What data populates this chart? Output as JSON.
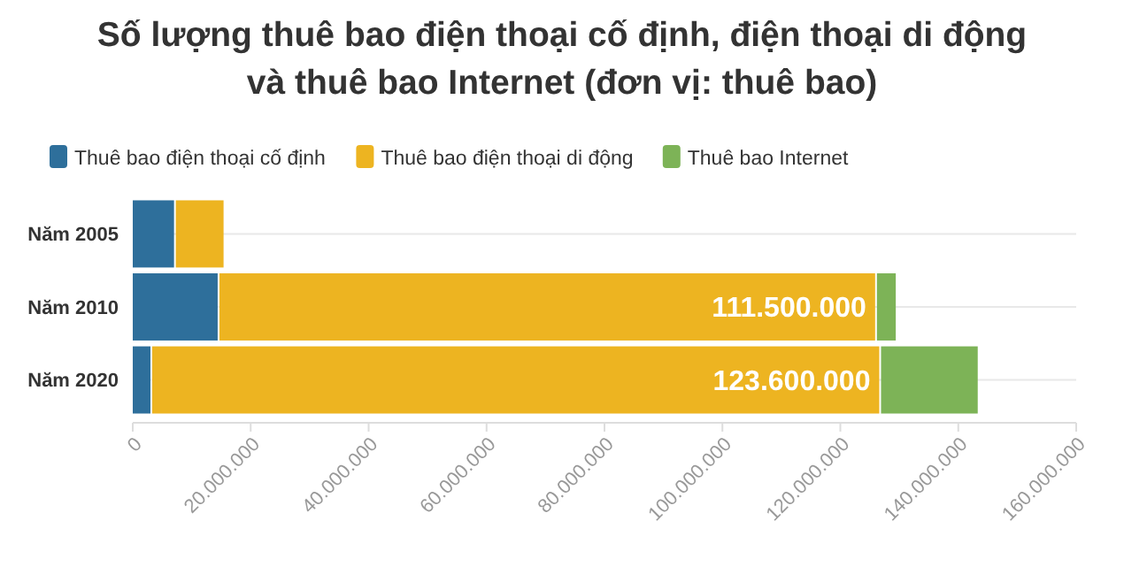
{
  "chart_data": {
    "type": "bar",
    "orientation": "horizontal",
    "stacked": true,
    "title": "Số lượng thuê bao điện thoại cố định, điện thoại di động và thuê bao Internet (đơn vị: thuê bao)",
    "categories": [
      "Năm 2005",
      "Năm 2010",
      "Năm 2020"
    ],
    "series": [
      {
        "name": "Thuê bao điện thoại cố định",
        "color": "#2e6f9b",
        "values": [
          7000000,
          14400000,
          3000000
        ]
      },
      {
        "name": "Thuê bao điện thoại di động",
        "color": "#edb421",
        "values": [
          8400000,
          111500000,
          123600000
        ],
        "value_labels": [
          null,
          "111.500.000",
          "123.600.000"
        ]
      },
      {
        "name": "Thuê bao Internet",
        "color": "#7db357",
        "values": [
          null,
          3500000,
          16700000
        ]
      }
    ],
    "xlim": [
      0,
      160000000
    ],
    "xticks": [
      0,
      {
        "value": 20000000,
        "label": "20.000.000"
      },
      {
        "value": 40000000,
        "label": "40.000.000"
      },
      {
        "value": 60000000,
        "label": "60.000.000"
      },
      {
        "value": 80000000,
        "label": "80.000.000"
      },
      {
        "value": 100000000,
        "label": "100.000.000"
      },
      {
        "value": 120000000,
        "label": "120.000.000"
      },
      {
        "value": 140000000,
        "label": "140.000.000"
      },
      {
        "value": 160000000,
        "label": "160.000.000"
      }
    ],
    "grid": "y",
    "legend": "top"
  }
}
